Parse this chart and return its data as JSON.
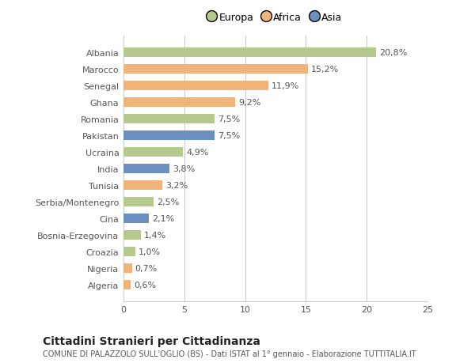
{
  "categories": [
    "Albania",
    "Marocco",
    "Senegal",
    "Ghana",
    "Romania",
    "Pakistan",
    "Ucraina",
    "India",
    "Tunisia",
    "Serbia/Montenegro",
    "Cina",
    "Bosnia-Erzegovina",
    "Croazia",
    "Nigeria",
    "Algeria"
  ],
  "values": [
    20.8,
    15.2,
    11.9,
    9.2,
    7.5,
    7.5,
    4.9,
    3.8,
    3.2,
    2.5,
    2.1,
    1.4,
    1.0,
    0.7,
    0.6
  ],
  "labels": [
    "20,8%",
    "15,2%",
    "11,9%",
    "9,2%",
    "7,5%",
    "7,5%",
    "4,9%",
    "3,8%",
    "3,2%",
    "2,5%",
    "2,1%",
    "1,4%",
    "1,0%",
    "0,7%",
    "0,6%"
  ],
  "continent": [
    "Europa",
    "Africa",
    "Africa",
    "Africa",
    "Europa",
    "Asia",
    "Europa",
    "Asia",
    "Africa",
    "Europa",
    "Asia",
    "Europa",
    "Europa",
    "Africa",
    "Africa"
  ],
  "colors": {
    "Europa": "#b5c98e",
    "Africa": "#f0b47a",
    "Asia": "#6b8fbf"
  },
  "legend_labels": [
    "Europa",
    "Africa",
    "Asia"
  ],
  "legend_colors": [
    "#b5c98e",
    "#f0b47a",
    "#6b8fbf"
  ],
  "xlim": [
    0,
    25
  ],
  "xticks": [
    0,
    5,
    10,
    15,
    20,
    25
  ],
  "title": "Cittadini Stranieri per Cittadinanza",
  "subtitle": "COMUNE DI PALAZZOLO SULL'OGLIO (BS) - Dati ISTAT al 1° gennaio - Elaborazione TUTTITALIA.IT",
  "background_color": "#ffffff",
  "grid_color": "#cccccc",
  "bar_height": 0.55,
  "label_fontsize": 8,
  "tick_fontsize": 8,
  "title_fontsize": 10,
  "subtitle_fontsize": 7
}
